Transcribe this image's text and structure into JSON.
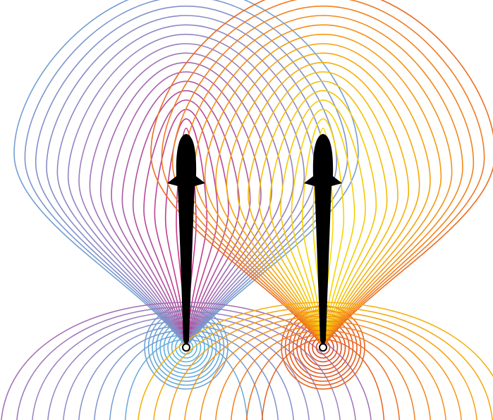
{
  "figure": {
    "subjects": [
      {
        "name": "left-fish",
        "field_palette": [
          "#4cc6ea",
          "#7c96cc",
          "#9a7ec0",
          "#b0509e",
          "#cf2f86"
        ]
      },
      {
        "name": "right-fish",
        "field_palette": [
          "#d93a1c",
          "#f07a22",
          "#f5a10c",
          "#f4c500",
          "#f8de00"
        ]
      }
    ],
    "background_color": "#ffffff",
    "fish_color": "#000000"
  }
}
